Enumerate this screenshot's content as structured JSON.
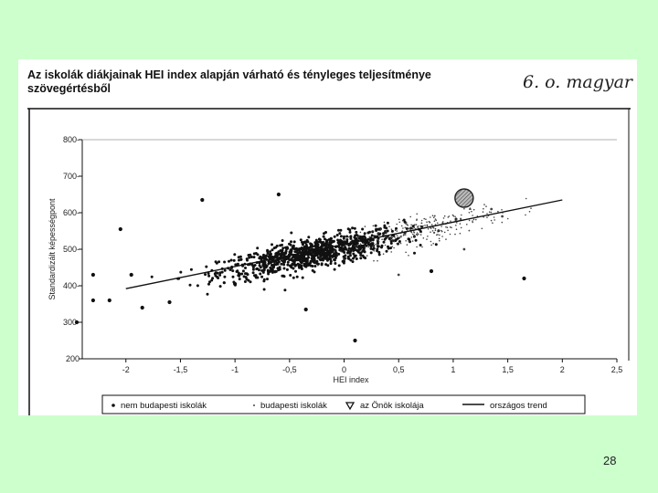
{
  "page_number": "28",
  "handwritten_note": "6. o. magyar",
  "colors": {
    "background": "#ccffcc",
    "scan": "#ffffff",
    "ink": "#111111",
    "highlight": "#8f8f8f"
  },
  "chart_data": {
    "type": "scatter",
    "title": "Az iskolák diákjainak HEI index alapján várható és tényleges teljesítménye",
    "subtitle": "szövegértésből",
    "xlabel": "HEI index",
    "ylabel": "Standardizált képességpont",
    "xlim": [
      -2.4,
      2.5
    ],
    "ylim": [
      200,
      800
    ],
    "x_ticks": [
      -2,
      -1.5,
      -1,
      -0.5,
      0,
      0.5,
      1,
      1.5,
      2,
      2.5
    ],
    "x_tick_labels": [
      "-2",
      "-1,5",
      "-1",
      "-0,5",
      "0",
      "0,5",
      "1",
      "1,5",
      "2",
      "2,5"
    ],
    "y_ticks": [
      200,
      300,
      400,
      500,
      600,
      700,
      800
    ],
    "y_tick_labels": [
      "200",
      "300-",
      "400-",
      "500-",
      "600-",
      "700-",
      "800-"
    ],
    "grid": false,
    "legend_position": "bottom",
    "series": [
      {
        "name": "nem budapesti iskolák",
        "marker": "dot",
        "color": "#111111",
        "cluster": {
          "mean_x": -0.3,
          "sd_x": 0.42,
          "mean_y": 487,
          "sd_y": 30,
          "count": 950
        },
        "outliers": [
          {
            "x": -2.05,
            "y": 555
          },
          {
            "x": -2.3,
            "y": 430
          },
          {
            "x": -2.45,
            "y": 300
          },
          {
            "x": -2.3,
            "y": 360
          },
          {
            "x": -1.3,
            "y": 635
          },
          {
            "x": -0.6,
            "y": 650
          },
          {
            "x": -0.35,
            "y": 335
          },
          {
            "x": 0.1,
            "y": 250
          },
          {
            "x": -1.6,
            "y": 355
          },
          {
            "x": -1.95,
            "y": 430
          },
          {
            "x": 0.8,
            "y": 440
          },
          {
            "x": 1.65,
            "y": 420
          },
          {
            "x": -1.85,
            "y": 340
          },
          {
            "x": -1.0,
            "y": 405
          },
          {
            "x": -2.15,
            "y": 360
          }
        ]
      },
      {
        "name": "budapesti iskolák",
        "marker": "small-dot",
        "color": "#444444",
        "cluster": {
          "mean_x": 0.75,
          "sd_x": 0.35,
          "mean_y": 555,
          "sd_y": 28,
          "count": 260
        },
        "outliers": [
          {
            "x": 1.35,
            "y": 610
          },
          {
            "x": 1.45,
            "y": 590
          },
          {
            "x": 0.5,
            "y": 430
          },
          {
            "x": 1.1,
            "y": 500
          }
        ]
      },
      {
        "name": "az Önök iskolája",
        "marker": "hatched-circle",
        "color": "#8f8f8f",
        "points": [
          {
            "x": 1.1,
            "y": 640
          }
        ]
      },
      {
        "name": "országos trend",
        "marker": "line",
        "color": "#111111",
        "points": [
          {
            "x": -2.0,
            "y": 392
          },
          {
            "x": 2.0,
            "y": 635
          }
        ]
      }
    ]
  }
}
